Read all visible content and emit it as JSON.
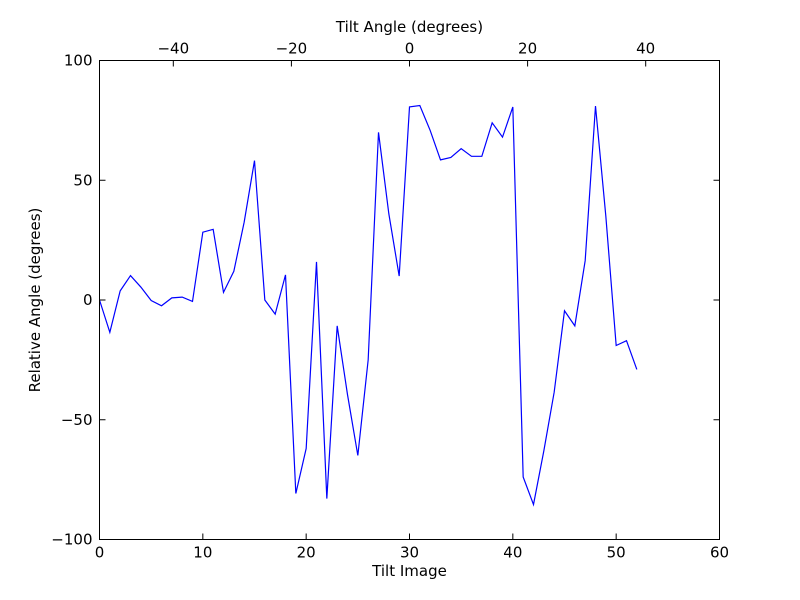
{
  "chart_data": {
    "type": "line",
    "title": "",
    "xlabel": "Tilt Image",
    "ylabel": "Relative Angle (degrees)",
    "top_xlabel": "Tilt Angle (degrees)",
    "xlim": [
      0,
      60
    ],
    "ylim": [
      -100,
      100
    ],
    "top_xlim": [
      -52.5,
      52.5
    ],
    "xticks": [
      0,
      10,
      20,
      30,
      40,
      50,
      60
    ],
    "xtick_labels": [
      "0",
      "10",
      "20",
      "30",
      "40",
      "50",
      "60"
    ],
    "yticks": [
      -100,
      -50,
      0,
      50,
      100
    ],
    "ytick_labels": [
      "−100",
      "−50",
      "0",
      "50",
      "100"
    ],
    "top_xticks": [
      -40,
      -20,
      0,
      20,
      40
    ],
    "top_xtick_labels": [
      "−40",
      "−20",
      "0",
      "20",
      "40"
    ],
    "grid": false,
    "series": [
      {
        "color": "#0000ff",
        "x": [
          0,
          1,
          2,
          3,
          4,
          5,
          6,
          7,
          8,
          9,
          10,
          11,
          12,
          13,
          14,
          15,
          16,
          17,
          18,
          19,
          20,
          21,
          22,
          23,
          24,
          25,
          26,
          27,
          28,
          29,
          30,
          31,
          32,
          33,
          34,
          35,
          36,
          37,
          38,
          39,
          40,
          41,
          42,
          43,
          44,
          45,
          46,
          47,
          48,
          49,
          50,
          51,
          52
        ],
        "y": [
          0,
          -13.5,
          3.8,
          10.2,
          5.4,
          -0.2,
          -2.4,
          0.9,
          1.2,
          -0.6,
          28.3,
          29.5,
          3.2,
          12,
          32.5,
          58.2,
          0,
          -5.9,
          10.5,
          -80.8,
          -62,
          15.9,
          -82.9,
          -10.8,
          -39.5,
          -64.9,
          -25,
          70,
          36,
          10,
          80.6,
          81.2,
          70.8,
          58.5,
          59.5,
          63.2,
          60,
          60,
          74,
          68,
          80.6,
          -73.9,
          -85.4,
          -63,
          -38.5,
          -4.5,
          -10.8,
          16.4,
          81,
          35,
          -19,
          -17,
          -29
        ]
      }
    ]
  }
}
